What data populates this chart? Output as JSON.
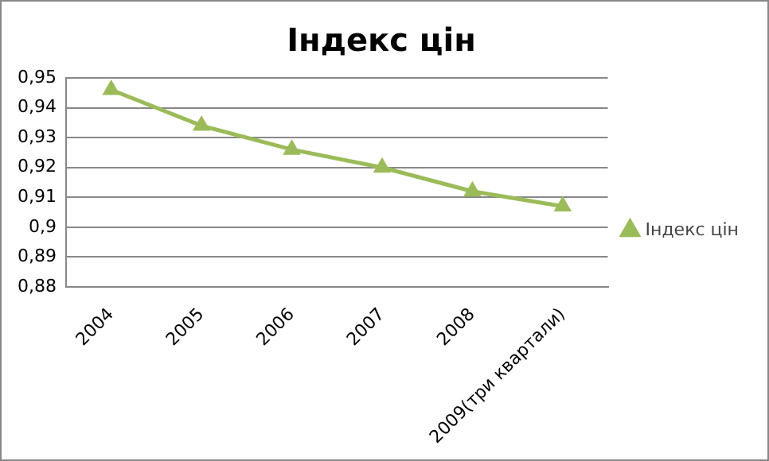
{
  "chart_data": {
    "type": "line",
    "title": "Індекс цін",
    "categories": [
      "2004",
      "2005",
      "2006",
      "2007",
      "2008",
      "2009(три квартали)"
    ],
    "series": [
      {
        "name": "Індекс цін",
        "color": "#9bbb59",
        "values": [
          0.946,
          0.934,
          0.926,
          0.92,
          0.912,
          0.907
        ]
      }
    ],
    "ylim": [
      0.88,
      0.95
    ],
    "yticks": [
      {
        "value": 0.88,
        "label": "0,88"
      },
      {
        "value": 0.89,
        "label": "0,89"
      },
      {
        "value": 0.9,
        "label": "0,9"
      },
      {
        "value": 0.91,
        "label": "0,91"
      },
      {
        "value": 0.92,
        "label": "0,92"
      },
      {
        "value": 0.93,
        "label": "0,93"
      },
      {
        "value": 0.94,
        "label": "0,94"
      },
      {
        "value": 0.95,
        "label": "0,95"
      }
    ],
    "grid": "y",
    "legend": "right",
    "marker": "triangle",
    "line_style": "solid"
  }
}
